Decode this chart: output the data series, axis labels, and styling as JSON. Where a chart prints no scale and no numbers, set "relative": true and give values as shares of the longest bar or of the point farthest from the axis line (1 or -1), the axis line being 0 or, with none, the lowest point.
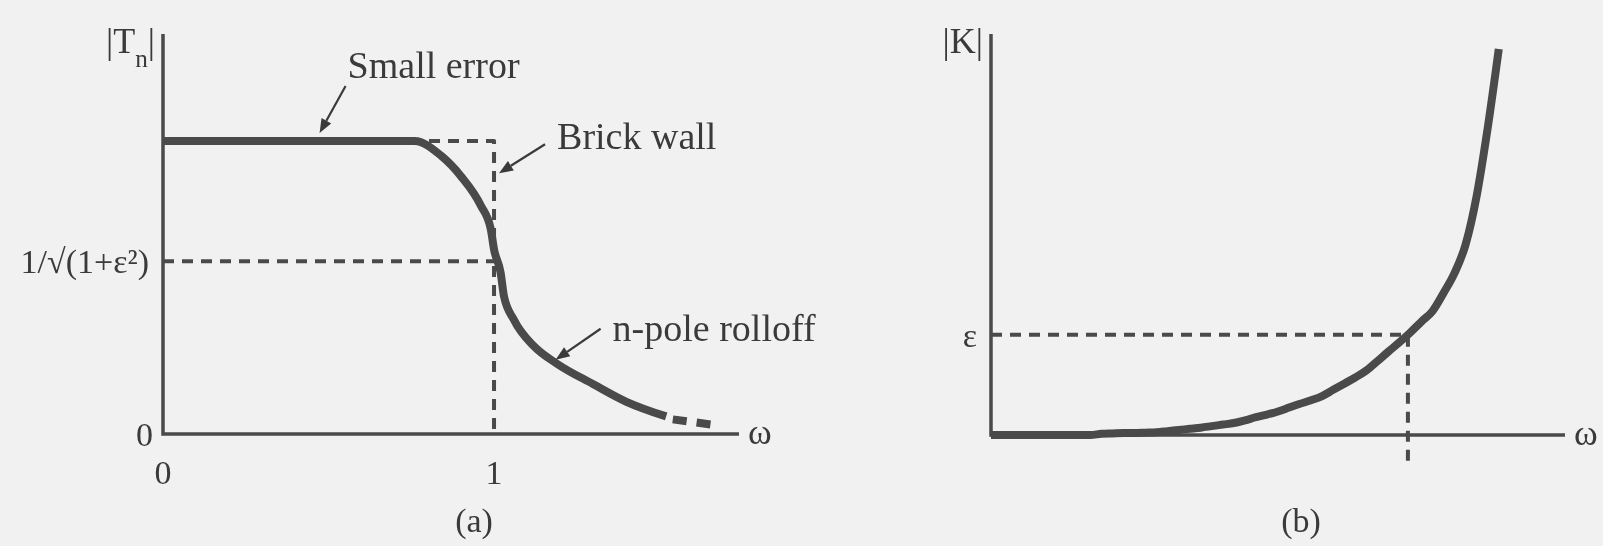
{
  "chart_data": [
    {
      "type": "line",
      "title": "(a)",
      "xlabel": "ω",
      "ylabel": "|T$_{n}$|",
      "relative": true,
      "xlim": [
        0,
        1.74
      ],
      "xticks": [
        0,
        1
      ],
      "series": [
        {
          "color": "#4a4a4a",
          "x": [
            0,
            0.7,
            0.76,
            0.84,
            0.9,
            0.96,
            0.99,
            1.0,
            1.02,
            1.03,
            1.06,
            1.12,
            1.19,
            1.3,
            1.4,
            1.52
          ],
          "values": [
            1,
            1,
            1,
            0.95,
            0.88,
            0.78,
            0.7,
            0.63,
            0.55,
            0.47,
            0.39,
            0.3,
            0.24,
            0.17,
            0.11,
            0.06
          ]
        },
        {
          "color": "#4a4a4a",
          "line_style": "dashed",
          "x": [
            1.54,
            1.67
          ],
          "values": [
            0.05,
            0.03
          ]
        },
        {
          "color": "#4a4a4a",
          "line_style": "dashed",
          "x": [
            0,
            1,
            1
          ],
          "values": [
            1,
            1,
            0
          ]
        }
      ],
      "ref_lines": [
        {
          "axis": "y",
          "value": 0.59,
          "label": "1/√(1+ε²)",
          "line_style": "dashed",
          "color": "#4a4a4a"
        }
      ],
      "annotations": [
        {
          "text": "Small error",
          "x": 0.47,
          "y": 1
        },
        {
          "text": "Brick wall",
          "x": 1,
          "y": 0.89
        },
        {
          "text": "n-pole rolloff",
          "x": 1.18,
          "y": 0.25
        },
        "0"
      ]
    },
    {
      "type": "line",
      "title": "(b)",
      "xlabel": "ω",
      "ylabel": "|K|",
      "relative": true,
      "categories": [
        null,
        null,
        null,
        null,
        null,
        null,
        null,
        null,
        null,
        null,
        null,
        null,
        null,
        null,
        null,
        null,
        null,
        null,
        null,
        null,
        null,
        null,
        null,
        null,
        null,
        null,
        null,
        null,
        null,
        null,
        null,
        null,
        null,
        null,
        null,
        null,
        null,
        null,
        null,
        null,
        null,
        null,
        null,
        null,
        null,
        null,
        null,
        null,
        null,
        null,
        null,
        null,
        null
      ],
      "series": [
        {
          "color": "#4a4a4a",
          "values": [
            0,
            0,
            0,
            0,
            0,
            0,
            0,
            0,
            0,
            0,
            0.003,
            0.004,
            0.005,
            0.005,
            0.006,
            0.007,
            0.01,
            0.013,
            0.016,
            0.019,
            0.023,
            0.027,
            0.031,
            0.038,
            0.046,
            0.053,
            0.061,
            0.071,
            0.081,
            0.09,
            0.101,
            0.117,
            0.133,
            0.149,
            0.167,
            0.191,
            0.216,
            0.24,
            0.266,
            0.294,
            0.321,
            0.368,
            0.42,
            0.494,
            0.62,
            0.796,
            1,
            null,
            null,
            null,
            null,
            null,
            null
          ]
        }
      ],
      "ref_lines": [
        {
          "axis": "y",
          "value": 0.26,
          "label": "ε",
          "line_style": "dashed",
          "color": "#4a4a4a"
        }
      ]
    }
  ]
}
